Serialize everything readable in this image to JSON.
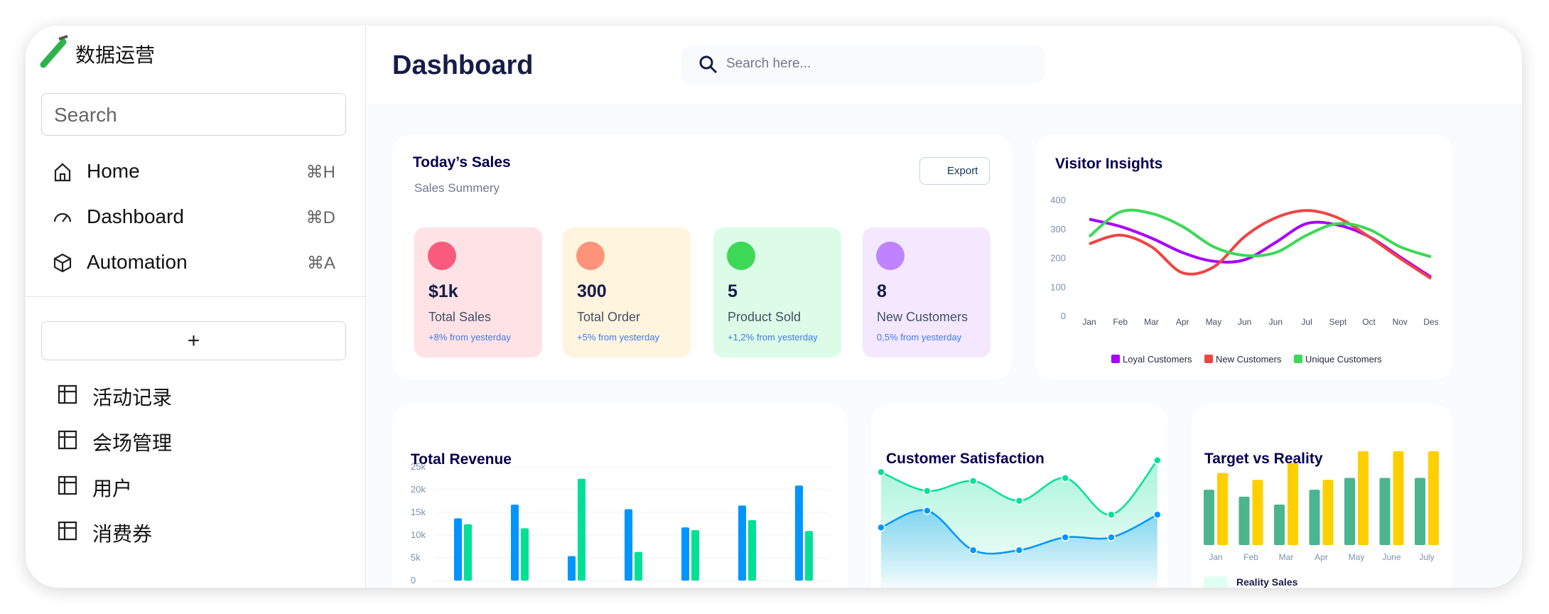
{
  "sidebar": {
    "brand": "数据运营",
    "search": "Search",
    "nav": [
      {
        "label": "Home",
        "shortcut": "⌘H"
      },
      {
        "label": "Dashboard",
        "shortcut": "⌘D"
      },
      {
        "label": "Automation",
        "shortcut": "⌘A"
      }
    ],
    "add": "+",
    "tables": [
      "活动记录",
      "会场管理",
      "用户",
      "消费券"
    ]
  },
  "header": {
    "title": "Dashboard",
    "search": "Search here..."
  },
  "sales": {
    "title": "Today’s Sales",
    "subtitle": "Sales Summery",
    "export": "Export",
    "cards": [
      {
        "value": "$1k",
        "label": "Total Sales",
        "change": "+8% from yesterday"
      },
      {
        "value": "300",
        "label": "Total Order",
        "change": "+5% from yesterday"
      },
      {
        "value": "5",
        "label": "Product Sold",
        "change": "+1,2% from yesterday"
      },
      {
        "value": "8",
        "label": "New Customers",
        "change": "0,5% from yesterday"
      }
    ]
  },
  "reality": {
    "label": "Reality Sales"
  },
  "chart_data": [
    {
      "type": "line",
      "title": "Visitor Insights",
      "categories": [
        "Jan",
        "Feb",
        "Mar",
        "Apr",
        "May",
        "Jun",
        "Jun",
        "Jul",
        "Sept",
        "Oct",
        "Nov",
        "Des"
      ],
      "series": [
        {
          "name": "Loyal Customers",
          "color": "#a700ff",
          "values": [
            335,
            310,
            270,
            220,
            190,
            195,
            255,
            320,
            315,
            275,
            205,
            135
          ]
        },
        {
          "name": "New Customers",
          "color": "#ef4444",
          "values": [
            250,
            280,
            240,
            150,
            170,
            275,
            340,
            365,
            340,
            275,
            200,
            130
          ]
        },
        {
          "name": "Unique Customers",
          "color": "#3cd856",
          "values": [
            275,
            360,
            355,
            310,
            240,
            210,
            220,
            280,
            320,
            300,
            240,
            205
          ]
        }
      ],
      "ylim": [
        0,
        400
      ],
      "yticks": [
        0,
        100,
        200,
        300,
        400
      ],
      "legend": "bottom"
    },
    {
      "type": "bar",
      "title": "Total Revenue",
      "series": [
        {
          "color": "#0095ff",
          "values": [
            13700,
            16700,
            5400,
            15700,
            11700,
            16500,
            20900
          ]
        },
        {
          "color": "#00e096",
          "values": [
            12400,
            11500,
            22400,
            6300,
            11100,
            13300,
            10900
          ]
        }
      ],
      "ylim": [
        0,
        25000
      ],
      "yticks": [
        0,
        {
          "value": 5000,
          "label": "5k"
        },
        {
          "value": 10000,
          "label": "10k"
        },
        {
          "value": 15000,
          "label": "15k"
        },
        {
          "value": 20000,
          "label": "20k"
        },
        {
          "value": 25000,
          "label": "25k"
        }
      ],
      "grid": true
    },
    {
      "type": "area",
      "title": "Customer Satisfaction",
      "series": [
        {
          "color": "#07e098",
          "values": [
            122,
            103,
            113,
            93,
            116,
            79,
            134
          ]
        },
        {
          "color": "#0095ff",
          "values": [
            66,
            83,
            43,
            43,
            56,
            56,
            79
          ]
        }
      ]
    },
    {
      "type": "bar",
      "title": "Target vs Reality",
      "categories": [
        "Jan",
        "Feb",
        "Mar",
        "Apr",
        "May",
        "June",
        "July"
      ],
      "series": [
        {
          "color": "#4ab58e",
          "values": [
            56,
            49,
            41,
            56,
            68,
            68,
            68
          ]
        },
        {
          "color": "#ffcf00",
          "values": [
            73,
            66,
            83,
            66,
            95,
            95,
            95
          ]
        }
      ]
    }
  ]
}
